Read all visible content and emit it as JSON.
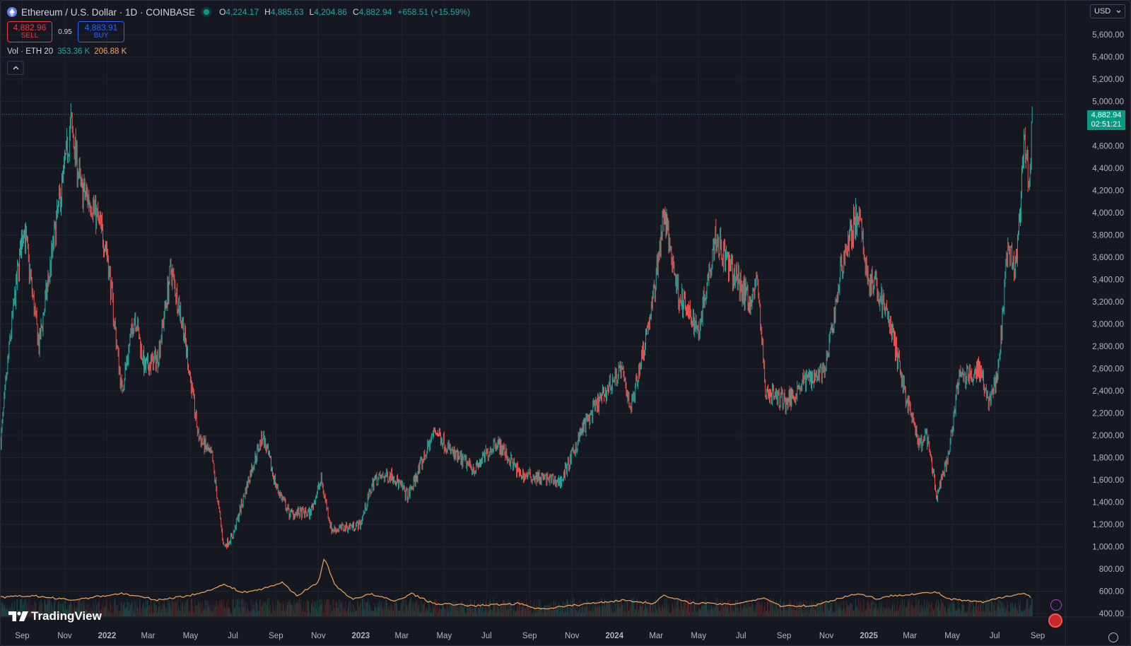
{
  "header": {
    "symbol": "Ethereum / U.S. Dollar · 1D · COINBASE",
    "ohlc": {
      "o_label": "O",
      "o": "4,224.17",
      "h_label": "H",
      "h": "4,885.63",
      "l_label": "L",
      "l": "4,204.86",
      "c_label": "C",
      "c": "4,882.94",
      "change": "+658.51 (+15.59%)"
    }
  },
  "trade": {
    "sell_price": "4,882.96",
    "sell_label": "SELL",
    "spread": "0.95",
    "buy_price": "4,883.91",
    "buy_label": "BUY"
  },
  "volume": {
    "label": "Vol · ETH 20",
    "value1": "353.36 K",
    "value2": "206.88 K"
  },
  "currency": "USD",
  "last_price": {
    "price": "4,882.94",
    "countdown": "02:51:21"
  },
  "brand": "TradingView",
  "colors": {
    "up": "#26a69a",
    "down": "#ef5350",
    "volume_ma": "#f7a35c",
    "last_price": "#089981",
    "background": "#151821"
  },
  "chart_data": {
    "type": "candlestick",
    "ylim": [
      400,
      5700
    ],
    "y_ticks": [
      "5,600.00",
      "5,400.00",
      "5,200.00",
      "5,000.00",
      "4,600.00",
      "4,400.00",
      "4,200.00",
      "4,000.00",
      "3,800.00",
      "3,600.00",
      "3,400.00",
      "3,200.00",
      "3,000.00",
      "2,800.00",
      "2,600.00",
      "2,400.00",
      "2,200.00",
      "2,000.00",
      "1,800.00",
      "1,600.00",
      "1,400.00",
      "1,200.00",
      "1,000.00",
      "800.00",
      "600.00",
      "400.00"
    ],
    "x_ticks": [
      "Sep",
      "Nov",
      "2022",
      "Mar",
      "May",
      "Jul",
      "Sep",
      "Nov",
      "2023",
      "Mar",
      "May",
      "Jul",
      "Sep",
      "Nov",
      "2024",
      "Mar",
      "May",
      "Jul",
      "Sep",
      "Nov",
      "2025",
      "Mar",
      "May",
      "Jul",
      "Sep"
    ],
    "close_path": [
      [
        "2021-08-01",
        1950
      ],
      [
        "2021-08-15",
        2900
      ],
      [
        "2021-09-03",
        3900
      ],
      [
        "2021-09-25",
        2800
      ],
      [
        "2021-10-20",
        3900
      ],
      [
        "2021-11-10",
        4800
      ],
      [
        "2021-11-25",
        4200
      ],
      [
        "2021-12-10",
        4100
      ],
      [
        "2021-12-31",
        3700
      ],
      [
        "2022-01-22",
        2400
      ],
      [
        "2022-02-10",
        3100
      ],
      [
        "2022-02-24",
        2600
      ],
      [
        "2022-03-15",
        2700
      ],
      [
        "2022-04-03",
        3500
      ],
      [
        "2022-04-20",
        3000
      ],
      [
        "2022-05-12",
        2000
      ],
      [
        "2022-06-01",
        1800
      ],
      [
        "2022-06-18",
        1000
      ],
      [
        "2022-07-01",
        1100
      ],
      [
        "2022-07-28",
        1700
      ],
      [
        "2022-08-13",
        2000
      ],
      [
        "2022-09-01",
        1550
      ],
      [
        "2022-09-20",
        1300
      ],
      [
        "2022-10-20",
        1300
      ],
      [
        "2022-11-05",
        1600
      ],
      [
        "2022-11-20",
        1150
      ],
      [
        "2022-12-31",
        1200
      ],
      [
        "2023-01-20",
        1600
      ],
      [
        "2023-02-15",
        1650
      ],
      [
        "2023-03-10",
        1450
      ],
      [
        "2023-04-18",
        2050
      ],
      [
        "2023-05-15",
        1820
      ],
      [
        "2023-06-15",
        1700
      ],
      [
        "2023-07-15",
        1950
      ],
      [
        "2023-08-18",
        1650
      ],
      [
        "2023-09-15",
        1620
      ],
      [
        "2023-10-15",
        1580
      ],
      [
        "2023-10-31",
        1800
      ],
      [
        "2023-11-15",
        2050
      ],
      [
        "2023-12-10",
        2300
      ],
      [
        "2024-01-10",
        2600
      ],
      [
        "2024-01-25",
        2250
      ],
      [
        "2024-02-25",
        3200
      ],
      [
        "2024-03-12",
        4000
      ],
      [
        "2024-04-01",
        3300
      ],
      [
        "2024-04-15",
        3100
      ],
      [
        "2024-05-01",
        2950
      ],
      [
        "2024-05-25",
        3800
      ],
      [
        "2024-06-15",
        3500
      ],
      [
        "2024-07-15",
        3200
      ],
      [
        "2024-07-25",
        3400
      ],
      [
        "2024-08-05",
        2400
      ],
      [
        "2024-09-05",
        2300
      ],
      [
        "2024-10-01",
        2500
      ],
      [
        "2024-10-31",
        2600
      ],
      [
        "2024-11-25",
        3600
      ],
      [
        "2024-12-16",
        4000
      ],
      [
        "2024-12-31",
        3400
      ],
      [
        "2025-01-15",
        3300
      ],
      [
        "2025-02-01",
        3000
      ],
      [
        "2025-02-25",
        2300
      ],
      [
        "2025-03-15",
        1900
      ],
      [
        "2025-03-25",
        2000
      ],
      [
        "2025-04-09",
        1450
      ],
      [
        "2025-04-25",
        1800
      ],
      [
        "2025-05-10",
        2500
      ],
      [
        "2025-06-10",
        2600
      ],
      [
        "2025-06-22",
        2300
      ],
      [
        "2025-07-05",
        2500
      ],
      [
        "2025-07-20",
        3650
      ],
      [
        "2025-08-01",
        3500
      ],
      [
        "2025-08-13",
        4650
      ],
      [
        "2025-08-20",
        4250
      ],
      [
        "2025-08-24",
        4883
      ]
    ],
    "volume_ma_path": [
      [
        "2021-08-01",
        545
      ],
      [
        "2021-09-15",
        560
      ],
      [
        "2021-11-10",
        520
      ],
      [
        "2022-01-22",
        580
      ],
      [
        "2022-03-15",
        520
      ],
      [
        "2022-05-12",
        575
      ],
      [
        "2022-06-18",
        660
      ],
      [
        "2022-07-15",
        590
      ],
      [
        "2022-08-13",
        620
      ],
      [
        "2022-09-10",
        680
      ],
      [
        "2022-10-01",
        560
      ],
      [
        "2022-11-01",
        680
      ],
      [
        "2022-11-10",
        905
      ],
      [
        "2022-11-25",
        650
      ],
      [
        "2022-12-20",
        530
      ],
      [
        "2023-01-15",
        575
      ],
      [
        "2023-02-20",
        510
      ],
      [
        "2023-03-15",
        580
      ],
      [
        "2023-04-15",
        490
      ],
      [
        "2023-06-15",
        470
      ],
      [
        "2023-08-18",
        490
      ],
      [
        "2023-09-15",
        440
      ],
      [
        "2023-10-31",
        470
      ],
      [
        "2023-12-10",
        500
      ],
      [
        "2024-01-15",
        520
      ],
      [
        "2024-02-25",
        490
      ],
      [
        "2024-03-12",
        560
      ],
      [
        "2024-04-15",
        500
      ],
      [
        "2024-06-15",
        480
      ],
      [
        "2024-08-05",
        540
      ],
      [
        "2024-08-25",
        470
      ],
      [
        "2024-10-15",
        470
      ],
      [
        "2024-11-15",
        530
      ],
      [
        "2024-12-16",
        580
      ],
      [
        "2025-01-15",
        530
      ],
      [
        "2025-02-03",
        560
      ],
      [
        "2025-03-15",
        580
      ],
      [
        "2025-04-09",
        590
      ],
      [
        "2025-04-25",
        530
      ],
      [
        "2025-06-15",
        500
      ],
      [
        "2025-07-20",
        560
      ],
      [
        "2025-08-13",
        580
      ],
      [
        "2025-08-24",
        540
      ]
    ],
    "last_price": 4882.94
  }
}
